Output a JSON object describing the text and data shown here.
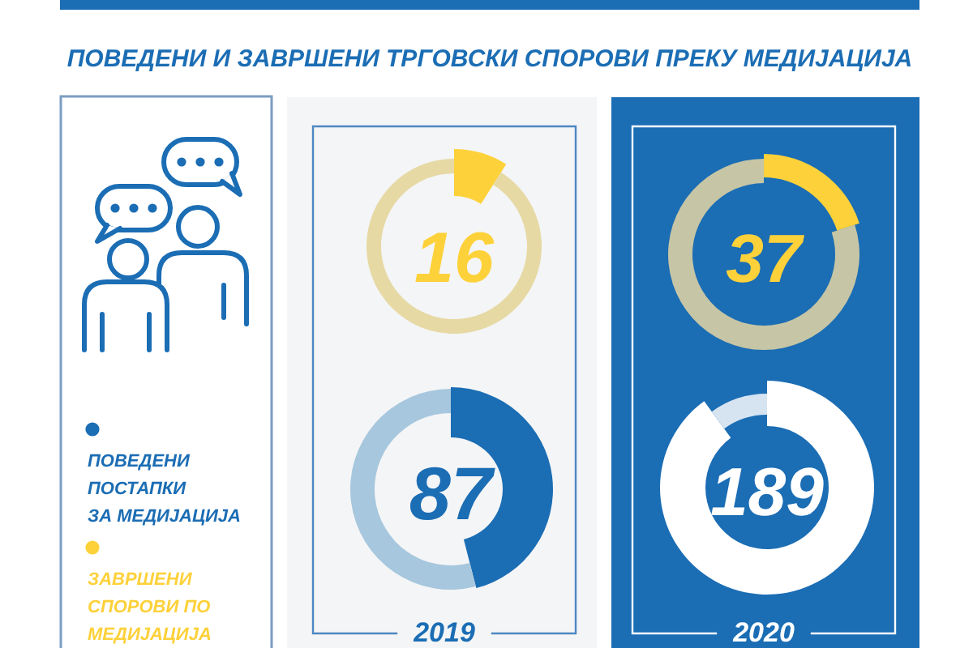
{
  "chart_data": [
    {
      "type": "donut",
      "title": "ПОВЕДЕНИ И ЗАВРШЕНИ ТРГОВСКИ СПОРОВИ ПРЕКУ МЕДИЈАЦИЈА",
      "categories": [
        "ЗАВРШЕНИ СПОРОВИ ПО МЕДИЈАЦИЈА",
        null
      ],
      "values": [
        9,
        91
      ],
      "colors": [
        "#fdd13a",
        "#e6d9a4"
      ],
      "annotations": [
        "16"
      ],
      "legend": "left"
    },
    {
      "type": "donut",
      "categories": [
        "ПОВЕДЕНИ ПОСТАПКИ ЗА МЕДИЈАЦИЈА",
        null
      ],
      "values": [
        46,
        54
      ],
      "colors": [
        "#1b6db4",
        "#a7c7de"
      ],
      "annotations": [
        "87"
      ],
      "legend": "left",
      "xlabel": "2019"
    },
    {
      "type": "donut",
      "categories": [
        null,
        null
      ],
      "values": [
        20,
        80
      ],
      "colors": [
        "#fdd13a",
        "#c6c5a5"
      ],
      "annotations": [
        "37"
      ]
    },
    {
      "type": "donut",
      "categories": [
        null,
        null
      ],
      "values": [
        90,
        10
      ],
      "colors": [
        "#ffffff",
        "#d6e4f1"
      ],
      "annotations": [
        "189"
      ],
      "xlabel": "2020"
    }
  ]
}
